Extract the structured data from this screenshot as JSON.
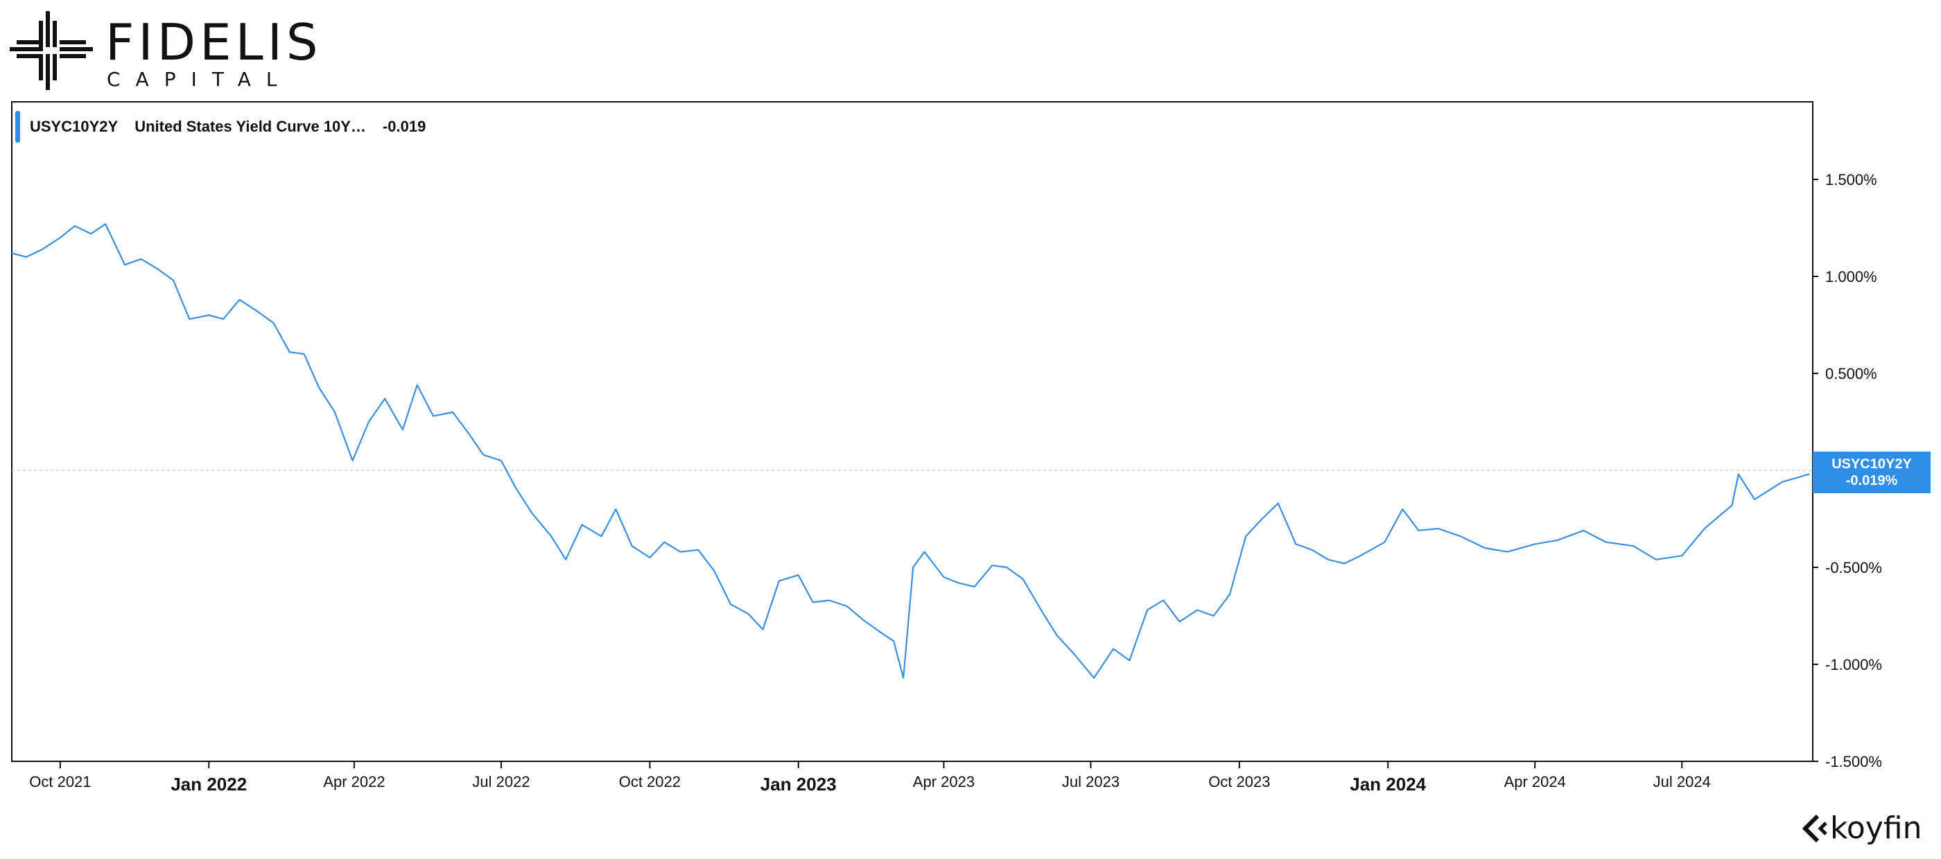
{
  "brand": {
    "name": "FIDELIS",
    "sub": "CAPITAL",
    "watermark": "koyfin"
  },
  "legend": {
    "symbol": "USYC10Y2Y",
    "name": "United States Yield Curve 10Y…",
    "value": "-0.019"
  },
  "last_badge": {
    "symbol": "USYC10Y2Y",
    "value": "-0.019%"
  },
  "colors": {
    "series": "#3a8fe0",
    "badge": "#2f8fe6",
    "axis": "#111111",
    "zero_line": "#cccccc"
  },
  "chart_data": {
    "type": "line",
    "title": "",
    "xlabel": "",
    "ylabel": "",
    "ylim": [
      -1.5,
      1.9
    ],
    "yticks": [
      {
        "value": 1.5,
        "label": "1.500%"
      },
      {
        "value": 1.0,
        "label": "1.000%"
      },
      {
        "value": 0.5,
        "label": "0.500%"
      },
      {
        "value": -0.5,
        "label": "-0.500%"
      },
      {
        "value": -1.0,
        "label": "-1.000%"
      },
      {
        "value": -1.5,
        "label": "-1.500%"
      }
    ],
    "xlim": [
      "2021-09-01",
      "2024-09-20"
    ],
    "xticks": [
      {
        "date": "2021-10-01",
        "label": "Oct 2021",
        "year": false
      },
      {
        "date": "2022-01-01",
        "label": "Jan 2022",
        "year": true
      },
      {
        "date": "2022-04-01",
        "label": "Apr 2022",
        "year": false
      },
      {
        "date": "2022-07-01",
        "label": "Jul 2022",
        "year": false
      },
      {
        "date": "2022-10-01",
        "label": "Oct 2022",
        "year": false
      },
      {
        "date": "2023-01-01",
        "label": "Jan 2023",
        "year": true
      },
      {
        "date": "2023-04-01",
        "label": "Apr 2023",
        "year": false
      },
      {
        "date": "2023-07-01",
        "label": "Jul 2023",
        "year": false
      },
      {
        "date": "2023-10-01",
        "label": "Oct 2023",
        "year": false
      },
      {
        "date": "2024-01-01",
        "label": "Jan 2024",
        "year": true
      },
      {
        "date": "2024-04-01",
        "label": "Apr 2024",
        "year": false
      },
      {
        "date": "2024-07-01",
        "label": "Jul 2024",
        "year": false
      }
    ],
    "grid": false,
    "legend_position": "top-left",
    "series": [
      {
        "name": "USYC10Y2Y",
        "points": [
          [
            "2021-09-01",
            1.12
          ],
          [
            "2021-09-10",
            1.1
          ],
          [
            "2021-09-20",
            1.14
          ],
          [
            "2021-10-01",
            1.2
          ],
          [
            "2021-10-10",
            1.26
          ],
          [
            "2021-10-20",
            1.22
          ],
          [
            "2021-10-29",
            1.27
          ],
          [
            "2021-11-10",
            1.06
          ],
          [
            "2021-11-20",
            1.09
          ],
          [
            "2021-11-30",
            1.04
          ],
          [
            "2021-12-10",
            0.98
          ],
          [
            "2021-12-20",
            0.78
          ],
          [
            "2022-01-01",
            0.8
          ],
          [
            "2022-01-10",
            0.78
          ],
          [
            "2022-01-20",
            0.88
          ],
          [
            "2022-01-31",
            0.82
          ],
          [
            "2022-02-10",
            0.76
          ],
          [
            "2022-02-20",
            0.61
          ],
          [
            "2022-03-01",
            0.6
          ],
          [
            "2022-03-10",
            0.43
          ],
          [
            "2022-03-20",
            0.3
          ],
          [
            "2022-03-31",
            0.05
          ],
          [
            "2022-04-10",
            0.25
          ],
          [
            "2022-04-20",
            0.37
          ],
          [
            "2022-05-01",
            0.21
          ],
          [
            "2022-05-10",
            0.44
          ],
          [
            "2022-05-20",
            0.28
          ],
          [
            "2022-06-01",
            0.3
          ],
          [
            "2022-06-10",
            0.2
          ],
          [
            "2022-06-20",
            0.08
          ],
          [
            "2022-07-01",
            0.05
          ],
          [
            "2022-07-10",
            -0.09
          ],
          [
            "2022-07-20",
            -0.22
          ],
          [
            "2022-08-01",
            -0.34
          ],
          [
            "2022-08-10",
            -0.46
          ],
          [
            "2022-08-20",
            -0.28
          ],
          [
            "2022-09-01",
            -0.34
          ],
          [
            "2022-09-10",
            -0.2
          ],
          [
            "2022-09-20",
            -0.39
          ],
          [
            "2022-10-01",
            -0.45
          ],
          [
            "2022-10-10",
            -0.37
          ],
          [
            "2022-10-20",
            -0.42
          ],
          [
            "2022-10-31",
            -0.41
          ],
          [
            "2022-11-10",
            -0.52
          ],
          [
            "2022-11-20",
            -0.69
          ],
          [
            "2022-12-01",
            -0.74
          ],
          [
            "2022-12-10",
            -0.82
          ],
          [
            "2022-12-20",
            -0.57
          ],
          [
            "2023-01-01",
            -0.54
          ],
          [
            "2023-01-10",
            -0.68
          ],
          [
            "2023-01-20",
            -0.67
          ],
          [
            "2023-01-31",
            -0.7
          ],
          [
            "2023-02-10",
            -0.77
          ],
          [
            "2023-02-20",
            -0.83
          ],
          [
            "2023-03-01",
            -0.88
          ],
          [
            "2023-03-07",
            -1.07
          ],
          [
            "2023-03-13",
            -0.5
          ],
          [
            "2023-03-20",
            -0.42
          ],
          [
            "2023-04-01",
            -0.55
          ],
          [
            "2023-04-10",
            -0.58
          ],
          [
            "2023-04-20",
            -0.6
          ],
          [
            "2023-05-01",
            -0.49
          ],
          [
            "2023-05-10",
            -0.5
          ],
          [
            "2023-05-20",
            -0.56
          ],
          [
            "2023-06-01",
            -0.73
          ],
          [
            "2023-06-10",
            -0.85
          ],
          [
            "2023-06-20",
            -0.94
          ],
          [
            "2023-07-03",
            -1.07
          ],
          [
            "2023-07-15",
            -0.92
          ],
          [
            "2023-07-25",
            -0.98
          ],
          [
            "2023-08-05",
            -0.72
          ],
          [
            "2023-08-15",
            -0.67
          ],
          [
            "2023-08-25",
            -0.78
          ],
          [
            "2023-09-05",
            -0.72
          ],
          [
            "2023-09-15",
            -0.75
          ],
          [
            "2023-09-25",
            -0.64
          ],
          [
            "2023-10-05",
            -0.34
          ],
          [
            "2023-10-15",
            -0.25
          ],
          [
            "2023-10-25",
            -0.17
          ],
          [
            "2023-11-05",
            -0.38
          ],
          [
            "2023-11-15",
            -0.41
          ],
          [
            "2023-11-25",
            -0.46
          ],
          [
            "2023-12-05",
            -0.48
          ],
          [
            "2023-12-15",
            -0.44
          ],
          [
            "2023-12-30",
            -0.37
          ],
          [
            "2024-01-10",
            -0.2
          ],
          [
            "2024-01-20",
            -0.31
          ],
          [
            "2024-02-01",
            -0.3
          ],
          [
            "2024-02-15",
            -0.34
          ],
          [
            "2024-03-01",
            -0.4
          ],
          [
            "2024-03-15",
            -0.42
          ],
          [
            "2024-04-01",
            -0.38
          ],
          [
            "2024-04-15",
            -0.36
          ],
          [
            "2024-05-01",
            -0.31
          ],
          [
            "2024-05-15",
            -0.37
          ],
          [
            "2024-06-01",
            -0.39
          ],
          [
            "2024-06-15",
            -0.46
          ],
          [
            "2024-07-01",
            -0.44
          ],
          [
            "2024-07-15",
            -0.3
          ],
          [
            "2024-08-01",
            -0.18
          ],
          [
            "2024-08-05",
            -0.02
          ],
          [
            "2024-08-15",
            -0.15
          ],
          [
            "2024-09-01",
            -0.06
          ],
          [
            "2024-09-18",
            -0.019
          ]
        ]
      }
    ]
  }
}
